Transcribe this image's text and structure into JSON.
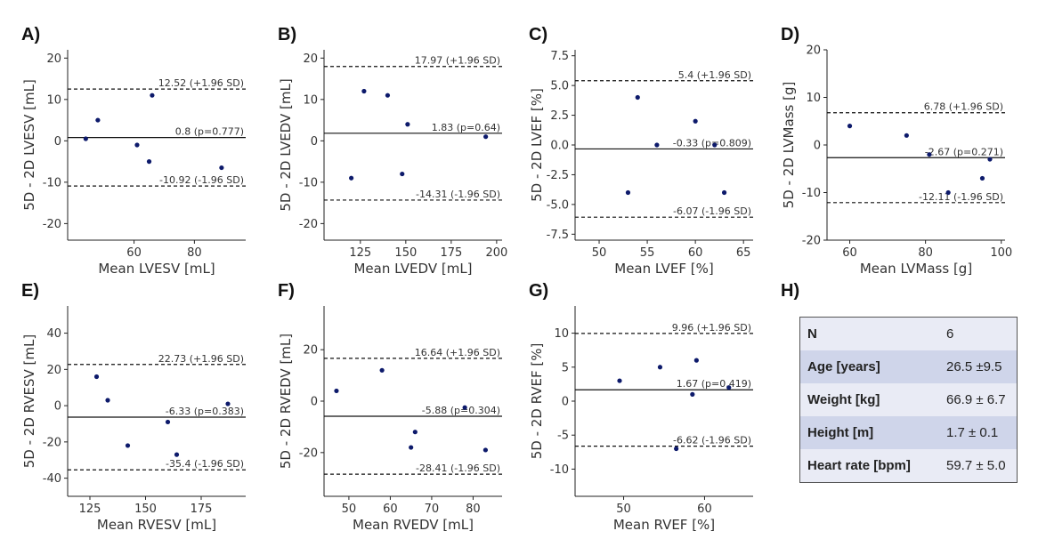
{
  "colors": {
    "point": "#0d1a6b",
    "line": "#111111",
    "table_light": "#e9ebf5",
    "table_dark": "#cfd5ea"
  },
  "panel_labels": [
    "A)",
    "B)",
    "C)",
    "D)",
    "E)",
    "F)",
    "G)",
    "H)"
  ],
  "chart_data": [
    {
      "id": "A",
      "type": "scatter",
      "xlabel": "Mean LVESV [mL]",
      "ylabel": "5D - 2D LVESV [mL]",
      "xlim": [
        38,
        97
      ],
      "ylim": [
        -24,
        22
      ],
      "xticks": [
        60,
        80
      ],
      "yticks": [
        -20,
        -10,
        0,
        10,
        20
      ],
      "points": [
        [
          44,
          0.5
        ],
        [
          48,
          5
        ],
        [
          61,
          -1
        ],
        [
          65,
          -5
        ],
        [
          66,
          11
        ],
        [
          89,
          -6.5
        ]
      ],
      "lines": [
        {
          "y": 12.52,
          "style": "dashed",
          "label": "12.52 (+1.96 SD)"
        },
        {
          "y": 0.8,
          "style": "solid",
          "label": "0.8 (p=0.777)"
        },
        {
          "y": -10.92,
          "style": "dashed",
          "label": "-10.92 (-1.96 SD)"
        }
      ]
    },
    {
      "id": "B",
      "type": "scatter",
      "xlabel": "Mean LVEDV [mL]",
      "ylabel": "5D - 2D LVEDV [mL]",
      "xlim": [
        105,
        203
      ],
      "ylim": [
        -24,
        22
      ],
      "xticks": [
        125,
        150,
        175,
        200
      ],
      "yticks": [
        -20,
        -10,
        0,
        10,
        20
      ],
      "points": [
        [
          120,
          -9
        ],
        [
          127,
          12
        ],
        [
          140,
          11
        ],
        [
          148,
          -8
        ],
        [
          151,
          4
        ],
        [
          194,
          1
        ]
      ],
      "lines": [
        {
          "y": 17.97,
          "style": "dashed",
          "label": "17.97 (+1.96 SD)"
        },
        {
          "y": 1.83,
          "style": "solid",
          "label": "1.83 (p=0.64)"
        },
        {
          "y": -14.31,
          "style": "dashed",
          "label": "-14.31 (-1.96 SD)"
        }
      ]
    },
    {
      "id": "C",
      "type": "scatter",
      "xlabel": "Mean LVEF [%]",
      "ylabel": "5D - 2D LVEF [%]",
      "xlim": [
        47.5,
        66
      ],
      "ylim": [
        -8,
        8
      ],
      "xticks": [
        50,
        55,
        60,
        65
      ],
      "yticks": [
        -7.5,
        -5.0,
        -2.5,
        0.0,
        2.5,
        5.0,
        7.5
      ],
      "tick_labels_y": [
        "-7.5",
        "-5.0",
        "-2.5",
        "0.0",
        "2.5",
        "5.0",
        "7.5"
      ],
      "points": [
        [
          53,
          -4
        ],
        [
          54,
          4
        ],
        [
          56,
          0
        ],
        [
          60,
          2
        ],
        [
          62,
          0
        ],
        [
          63,
          -4
        ]
      ],
      "lines": [
        {
          "y": 5.4,
          "style": "dashed",
          "label": "5.4 (+1.96 SD)"
        },
        {
          "y": -0.33,
          "style": "solid",
          "label": "-0.33 (p=0.809)"
        },
        {
          "y": -6.07,
          "style": "dashed",
          "label": "-6.07 (-1.96 SD)"
        }
      ]
    },
    {
      "id": "D",
      "type": "scatter",
      "xlabel": "Mean LVMass [g]",
      "ylabel": "5D - 2D LVMass [g]",
      "xlim": [
        54,
        101
      ],
      "ylim": [
        -20,
        20
      ],
      "xticks": [
        60,
        80,
        100
      ],
      "yticks": [
        -20,
        -10,
        0,
        10,
        20
      ],
      "points": [
        [
          60,
          4
        ],
        [
          75,
          2
        ],
        [
          81,
          -2
        ],
        [
          86,
          -10
        ],
        [
          95,
          -7
        ],
        [
          97,
          -3
        ]
      ],
      "lines": [
        {
          "y": 6.78,
          "style": "dashed",
          "label": "6.78 (+1.96 SD)"
        },
        {
          "y": -2.67,
          "style": "solid",
          "label": "-2.67 (p=0.271)"
        },
        {
          "y": -12.11,
          "style": "dashed",
          "label": "-12.11 (-1.96 SD)"
        }
      ]
    },
    {
      "id": "E",
      "type": "scatter",
      "xlabel": "Mean RVESV [mL]",
      "ylabel": "5D - 2D RVESV [mL]",
      "xlim": [
        115,
        195
      ],
      "ylim": [
        -50,
        55
      ],
      "xticks": [
        125,
        150,
        175
      ],
      "yticks": [
        -40,
        -20,
        0,
        20,
        40
      ],
      "points": [
        [
          128,
          16
        ],
        [
          133,
          3
        ],
        [
          142,
          -22
        ],
        [
          160,
          -9
        ],
        [
          164,
          -27
        ],
        [
          187,
          1
        ]
      ],
      "lines": [
        {
          "y": 22.73,
          "style": "dashed",
          "label": "22.73 (+1.96 SD)"
        },
        {
          "y": -6.33,
          "style": "solid",
          "label": "-6.33 (p=0.383)"
        },
        {
          "y": -35.4,
          "style": "dashed",
          "label": "-35.4 (-1.96 SD)"
        }
      ]
    },
    {
      "id": "F",
      "type": "scatter",
      "xlabel": "Mean RVEDV [mL]",
      "ylabel": "5D - 2D RVEDV [mL]",
      "xlim": [
        44,
        87
      ],
      "ylim": [
        -37,
        37
      ],
      "xticks": [
        50,
        60,
        70,
        80
      ],
      "yticks": [
        -20,
        0,
        20
      ],
      "points": [
        [
          47,
          4
        ],
        [
          58,
          12
        ],
        [
          65,
          -18
        ],
        [
          66,
          -12
        ],
        [
          78,
          -2.5
        ],
        [
          83,
          -19
        ]
      ],
      "lines": [
        {
          "y": 16.64,
          "style": "dashed",
          "label": "16.64 (+1.96 SD)"
        },
        {
          "y": -5.88,
          "style": "solid",
          "label": "-5.88 (p=0.304)"
        },
        {
          "y": -28.41,
          "style": "dashed",
          "label": "-28.41 (-1.96 SD)"
        }
      ]
    },
    {
      "id": "G",
      "type": "scatter",
      "xlabel": "Mean RVEF [%]",
      "ylabel": "5D - 2D RVEF [%]",
      "xlim": [
        44,
        66
      ],
      "ylim": [
        -14,
        14
      ],
      "xticks": [
        50,
        60
      ],
      "yticks": [
        -10,
        -5,
        0,
        5,
        10
      ],
      "points": [
        [
          49.5,
          3
        ],
        [
          54.5,
          5
        ],
        [
          56.5,
          -7
        ],
        [
          58.5,
          1
        ],
        [
          59,
          6
        ],
        [
          63,
          2
        ]
      ],
      "lines": [
        {
          "y": 9.96,
          "style": "dashed",
          "label": "9.96 (+1.96 SD)"
        },
        {
          "y": 1.67,
          "style": "solid",
          "label": "1.67 (p=0.419)"
        },
        {
          "y": -6.62,
          "style": "dashed",
          "label": "-6.62 (-1.96 SD)"
        }
      ]
    }
  ],
  "summary_table": [
    {
      "key": "N",
      "value": "6"
    },
    {
      "key": "Age [years]",
      "value": "26.5 ±9.5"
    },
    {
      "key": "Weight [kg]",
      "value": "66.9 ± 6.7"
    },
    {
      "key": "Height [m]",
      "value": "1.7 ± 0.1"
    },
    {
      "key": "Heart rate [bpm]",
      "value": "59.7 ± 5.0"
    }
  ]
}
